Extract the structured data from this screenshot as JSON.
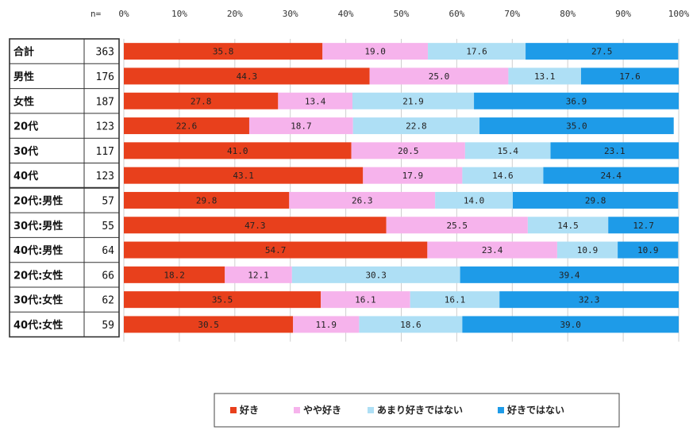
{
  "chart_data": {
    "type": "bar",
    "orientation": "horizontal",
    "stacked": "percent",
    "n_header": "n=",
    "x_ticks": [
      "0%",
      "10%",
      "20%",
      "30%",
      "40%",
      "50%",
      "60%",
      "70%",
      "80%",
      "90%",
      "100%"
    ],
    "xlim": [
      0,
      100
    ],
    "legend_position": "bottom",
    "categories": [
      "合計",
      "男性",
      "女性",
      "20代",
      "30代",
      "40代",
      "20代:男性",
      "30代:男性",
      "40代:男性",
      "20代:女性",
      "30代:女性",
      "40代:女性"
    ],
    "n": [
      363,
      176,
      187,
      123,
      117,
      123,
      57,
      55,
      64,
      66,
      62,
      59
    ],
    "series": [
      {
        "name": "好き",
        "color": "#e8401c",
        "values": [
          35.8,
          44.3,
          27.8,
          22.6,
          41.0,
          43.1,
          29.8,
          47.3,
          54.7,
          18.2,
          35.5,
          30.5
        ],
        "labels": [
          "35.8",
          "44.3",
          "27.8",
          "22.6",
          "41.0",
          "43.1",
          "29.8",
          "47.3",
          "54.7",
          "18.2",
          "35.5",
          "30.5"
        ]
      },
      {
        "name": "やや好き",
        "color": "#f6b3ec",
        "values": [
          19.0,
          25.0,
          13.4,
          18.7,
          20.5,
          17.9,
          26.3,
          25.5,
          23.4,
          12.1,
          16.1,
          11.9
        ],
        "labels": [
          "19.0",
          "25.0",
          "13.4",
          "18.7",
          "20.5",
          "17.9",
          "26.3",
          "25.5",
          "23.4",
          "12.1",
          "16.1",
          "11.9"
        ]
      },
      {
        "name": "あまり好きではない",
        "color": "#aedff5",
        "values": [
          17.6,
          13.1,
          21.9,
          22.8,
          15.4,
          14.6,
          14.0,
          14.5,
          10.9,
          30.3,
          16.1,
          18.6
        ],
        "labels": [
          "17.6",
          "13.1",
          "21.9",
          "22.8",
          "15.4",
          "14.6",
          "14.0",
          "14.5",
          "10.9",
          "30.3",
          "16.1",
          "18.6"
        ]
      },
      {
        "name": "好きではない",
        "color": "#1e9be8",
        "values": [
          27.5,
          17.6,
          36.9,
          35.0,
          23.1,
          24.4,
          29.8,
          12.7,
          10.9,
          39.4,
          32.3,
          39.0
        ],
        "labels": [
          "27.5",
          "17.6",
          "36.9",
          "35.0",
          "23.1",
          "24.4",
          "29.8",
          "12.7",
          "10.9",
          "39.4",
          "32.3",
          "39.0"
        ]
      }
    ]
  }
}
